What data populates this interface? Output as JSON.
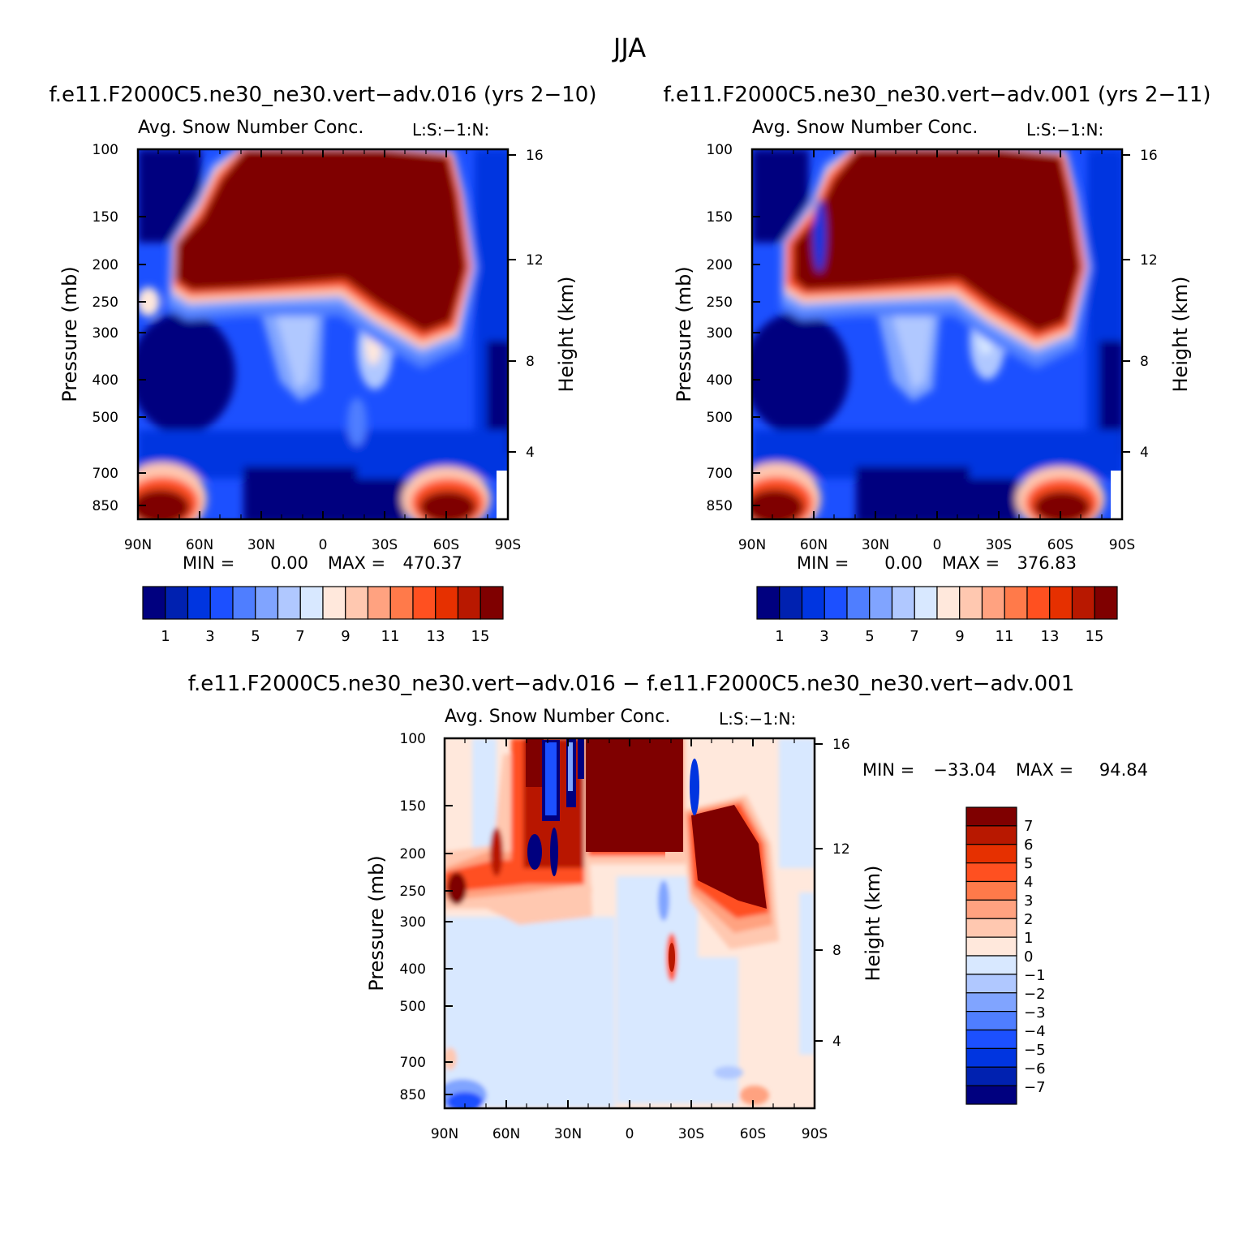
{
  "page_title": "JJA",
  "chart_data": [
    {
      "type": "heatmap",
      "title": "f.e11.F2000C5.ne30_ne30.vert−adv.016 (yrs 2−10)",
      "subtitle": "Avg. Snow Number Conc.",
      "units_label": "L:S:−1:N:",
      "ylabel": "Pressure (mb)",
      "y2label": "Height (km)",
      "x_ticks": [
        "90N",
        "60N",
        "30N",
        "0",
        "30S",
        "60S",
        "90S"
      ],
      "y_ticks": [
        "100",
        "150",
        "200",
        "250",
        "300",
        "400",
        "500",
        "700",
        "850"
      ],
      "y2_ticks": [
        "16",
        "12",
        "8",
        "4"
      ],
      "min_label": "MIN =",
      "min_value": "0.00",
      "max_label": "MAX =",
      "max_value": "470.37",
      "colorbar_labels": [
        "1",
        "3",
        "5",
        "7",
        "9",
        "11",
        "13",
        "15"
      ]
    },
    {
      "type": "heatmap",
      "title": "f.e11.F2000C5.ne30_ne30.vert−adv.001 (yrs 2−11)",
      "subtitle": "Avg. Snow Number Conc.",
      "units_label": "L:S:−1:N:",
      "ylabel": "Pressure (mb)",
      "y2label": "Height (km)",
      "x_ticks": [
        "90N",
        "60N",
        "30N",
        "0",
        "30S",
        "60S",
        "90S"
      ],
      "y_ticks": [
        "100",
        "150",
        "200",
        "250",
        "300",
        "400",
        "500",
        "700",
        "850"
      ],
      "y2_ticks": [
        "16",
        "12",
        "8",
        "4"
      ],
      "min_label": "MIN =",
      "min_value": "0.00",
      "max_label": "MAX =",
      "max_value": "376.83",
      "colorbar_labels": [
        "1",
        "3",
        "5",
        "7",
        "9",
        "11",
        "13",
        "15"
      ]
    },
    {
      "type": "heatmap",
      "title": "f.e11.F2000C5.ne30_ne30.vert−adv.016 − f.e11.F2000C5.ne30_ne30.vert−adv.001",
      "subtitle": "Avg. Snow Number Conc.",
      "units_label": "L:S:−1:N:",
      "ylabel": "Pressure (mb)",
      "y2label": "Height (km)",
      "x_ticks": [
        "90N",
        "60N",
        "30N",
        "0",
        "30S",
        "60S",
        "90S"
      ],
      "y_ticks": [
        "100",
        "150",
        "200",
        "250",
        "300",
        "400",
        "500",
        "700",
        "850"
      ],
      "y2_ticks": [
        "16",
        "12",
        "8",
        "4"
      ],
      "min_label": "MIN =",
      "min_value": "−33.04",
      "max_label": "MAX =",
      "max_value": "94.84",
      "colorbar_labels": [
        "7",
        "6",
        "5",
        "4",
        "3",
        "2",
        "1",
        "0",
        "−1",
        "−2",
        "−3",
        "−4",
        "−5",
        "−6",
        "−7"
      ]
    }
  ],
  "palette": [
    "#00007f",
    "#0021b0",
    "#0035e0",
    "#1c50ff",
    "#4f7eff",
    "#80a4ff",
    "#b0c8ff",
    "#d8e8ff",
    "#ffe8dc",
    "#ffc8b0",
    "#ffa280",
    "#ff7a4a",
    "#ff5020",
    "#e63000",
    "#b81800",
    "#7f0000"
  ],
  "diff_palette": [
    "#7f0000",
    "#b81800",
    "#e63000",
    "#ff5020",
    "#ff7a4a",
    "#ffa280",
    "#ffc8b0",
    "#ffe8dc",
    "#d8e8ff",
    "#b0c8ff",
    "#80a4ff",
    "#4f7eff",
    "#1c50ff",
    "#0035e0",
    "#0021b0",
    "#00007f"
  ]
}
